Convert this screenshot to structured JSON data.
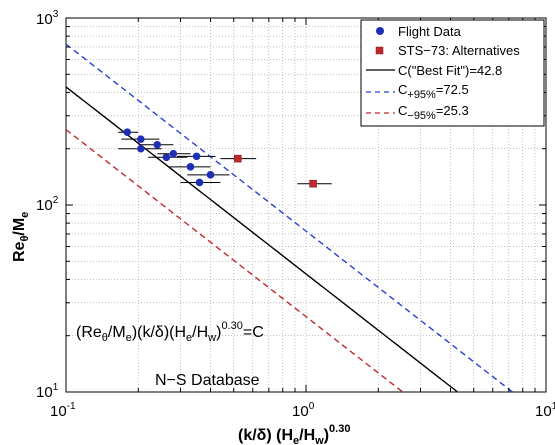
{
  "chart_data": {
    "type": "scatter",
    "xscale": "log",
    "yscale": "log",
    "xlim": [
      0.1,
      10
    ],
    "ylim": [
      10,
      1000
    ],
    "grid": true,
    "legend_position": "top-right",
    "x_ticks": [
      {
        "base": "10",
        "exp": "-1"
      },
      {
        "base": "10",
        "exp": "0"
      },
      {
        "base": "10",
        "exp": "1"
      }
    ],
    "y_ticks": [
      {
        "base": "10",
        "exp": "1"
      },
      {
        "base": "10",
        "exp": "2"
      },
      {
        "base": "10",
        "exp": "3"
      }
    ],
    "xlabel": {
      "a": "(k/δ) (H",
      "sub1": "e",
      "b": "/H",
      "sub2": "w",
      "c": ")",
      "sup": "0.30"
    },
    "ylabel": {
      "a": "Re",
      "sub1": "θ",
      "b": "/M",
      "sub2": "e"
    },
    "legend": [
      {
        "label": "Flight Data",
        "marker": "circle",
        "color": "#1f2fb5"
      },
      {
        "label": "STS−73: Alternatives",
        "marker": "square",
        "color": "#c0282c"
      },
      {
        "label": "C(\"Best Fit\")=42.8",
        "line": "solid",
        "color": "#000000"
      },
      {
        "label_main": "C",
        "label_sub": "+95%",
        "label_rest": "=72.5",
        "line": "dashed",
        "color": "#2a3fd6"
      },
      {
        "label_main": "C",
        "label_sub": "−95%",
        "label_rest": "=25.3",
        "line": "dashed",
        "color": "#c0282c"
      }
    ],
    "fit_lines": [
      {
        "name": "C(\"Best Fit\")=42.8",
        "C": 42.8,
        "color": "#000000",
        "dash": false
      },
      {
        "name": "C+95%=72.5",
        "C": 72.5,
        "color": "#2a3fd6",
        "dash": true
      },
      {
        "name": "C−95%=25.3",
        "C": 25.3,
        "color": "#c0282c",
        "dash": true
      }
    ],
    "series": [
      {
        "name": "Flight Data",
        "color": "#1f2fb5",
        "marker": "circle",
        "points": [
          {
            "x": 0.18,
            "y": 245,
            "xerr": [
              0.165,
              0.2
            ]
          },
          {
            "x": 0.205,
            "y": 225,
            "xerr": [
              0.17,
              0.245
            ]
          },
          {
            "x": 0.205,
            "y": 200,
            "xerr": [
              0.165,
              0.25
            ]
          },
          {
            "x": 0.24,
            "y": 210,
            "xerr": [
              0.205,
              0.28
            ]
          },
          {
            "x": 0.262,
            "y": 180,
            "xerr": [
              0.22,
              0.32
            ]
          },
          {
            "x": 0.28,
            "y": 188,
            "xerr": [
              0.24,
              0.33
            ]
          },
          {
            "x": 0.33,
            "y": 160,
            "xerr": [
              0.27,
              0.4
            ]
          },
          {
            "x": 0.35,
            "y": 182,
            "xerr": [
              0.29,
              0.42
            ]
          },
          {
            "x": 0.36,
            "y": 132,
            "xerr": [
              0.3,
              0.44
            ]
          },
          {
            "x": 0.4,
            "y": 145,
            "xerr": [
              0.32,
              0.48
            ]
          }
        ]
      },
      {
        "name": "STS−73: Alternatives",
        "color": "#c0282c",
        "marker": "square",
        "points": [
          {
            "x": 0.52,
            "y": 177,
            "xerr": [
              0.44,
              0.62
            ]
          },
          {
            "x": 1.07,
            "y": 130,
            "xerr": [
              0.92,
              1.28
            ]
          }
        ]
      }
    ],
    "annotations": {
      "equation": {
        "a": "(Re",
        "sub1": "θ",
        "b": "/M",
        "sub2": "e",
        "c": ")(k/δ)(H",
        "sub3": "e",
        "d": "/H",
        "sub4": "w",
        "e": ")",
        "sup": "0.30",
        "f": "=C"
      },
      "database": "N−S Database"
    }
  }
}
